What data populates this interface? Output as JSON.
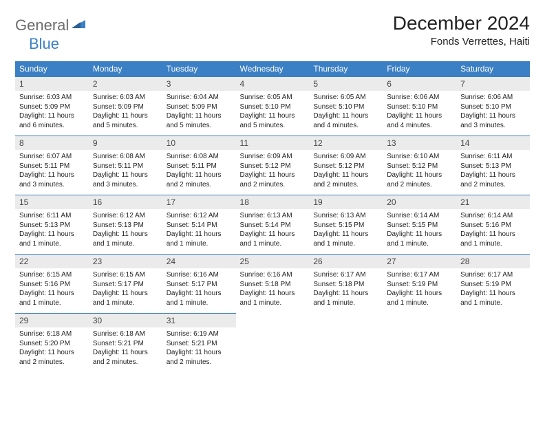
{
  "brand": {
    "word1": "General",
    "word2": "Blue",
    "text_color": "#6b6b6b",
    "accent_color": "#3b7fc4"
  },
  "title": "December 2024",
  "location": "Fonds Verrettes, Haiti",
  "style": {
    "header_bg": "#3b7fc4",
    "header_text": "#ffffff",
    "daynum_bg": "#ebebeb",
    "daynum_border": "#3b7fc4",
    "body_bg": "#ffffff",
    "text_color": "#222222",
    "font_family": "Arial",
    "title_fontsize": 28,
    "location_fontsize": 15,
    "header_fontsize": 12,
    "body_fontsize": 10
  },
  "weekdays": [
    "Sunday",
    "Monday",
    "Tuesday",
    "Wednesday",
    "Thursday",
    "Friday",
    "Saturday"
  ],
  "days": [
    {
      "n": 1,
      "sunrise": "6:03 AM",
      "sunset": "5:09 PM",
      "daylight": "11 hours and 6 minutes."
    },
    {
      "n": 2,
      "sunrise": "6:03 AM",
      "sunset": "5:09 PM",
      "daylight": "11 hours and 5 minutes."
    },
    {
      "n": 3,
      "sunrise": "6:04 AM",
      "sunset": "5:09 PM",
      "daylight": "11 hours and 5 minutes."
    },
    {
      "n": 4,
      "sunrise": "6:05 AM",
      "sunset": "5:10 PM",
      "daylight": "11 hours and 5 minutes."
    },
    {
      "n": 5,
      "sunrise": "6:05 AM",
      "sunset": "5:10 PM",
      "daylight": "11 hours and 4 minutes."
    },
    {
      "n": 6,
      "sunrise": "6:06 AM",
      "sunset": "5:10 PM",
      "daylight": "11 hours and 4 minutes."
    },
    {
      "n": 7,
      "sunrise": "6:06 AM",
      "sunset": "5:10 PM",
      "daylight": "11 hours and 3 minutes."
    },
    {
      "n": 8,
      "sunrise": "6:07 AM",
      "sunset": "5:11 PM",
      "daylight": "11 hours and 3 minutes."
    },
    {
      "n": 9,
      "sunrise": "6:08 AM",
      "sunset": "5:11 PM",
      "daylight": "11 hours and 3 minutes."
    },
    {
      "n": 10,
      "sunrise": "6:08 AM",
      "sunset": "5:11 PM",
      "daylight": "11 hours and 2 minutes."
    },
    {
      "n": 11,
      "sunrise": "6:09 AM",
      "sunset": "5:12 PM",
      "daylight": "11 hours and 2 minutes."
    },
    {
      "n": 12,
      "sunrise": "6:09 AM",
      "sunset": "5:12 PM",
      "daylight": "11 hours and 2 minutes."
    },
    {
      "n": 13,
      "sunrise": "6:10 AM",
      "sunset": "5:12 PM",
      "daylight": "11 hours and 2 minutes."
    },
    {
      "n": 14,
      "sunrise": "6:11 AM",
      "sunset": "5:13 PM",
      "daylight": "11 hours and 2 minutes."
    },
    {
      "n": 15,
      "sunrise": "6:11 AM",
      "sunset": "5:13 PM",
      "daylight": "11 hours and 1 minute."
    },
    {
      "n": 16,
      "sunrise": "6:12 AM",
      "sunset": "5:13 PM",
      "daylight": "11 hours and 1 minute."
    },
    {
      "n": 17,
      "sunrise": "6:12 AM",
      "sunset": "5:14 PM",
      "daylight": "11 hours and 1 minute."
    },
    {
      "n": 18,
      "sunrise": "6:13 AM",
      "sunset": "5:14 PM",
      "daylight": "11 hours and 1 minute."
    },
    {
      "n": 19,
      "sunrise": "6:13 AM",
      "sunset": "5:15 PM",
      "daylight": "11 hours and 1 minute."
    },
    {
      "n": 20,
      "sunrise": "6:14 AM",
      "sunset": "5:15 PM",
      "daylight": "11 hours and 1 minute."
    },
    {
      "n": 21,
      "sunrise": "6:14 AM",
      "sunset": "5:16 PM",
      "daylight": "11 hours and 1 minute."
    },
    {
      "n": 22,
      "sunrise": "6:15 AM",
      "sunset": "5:16 PM",
      "daylight": "11 hours and 1 minute."
    },
    {
      "n": 23,
      "sunrise": "6:15 AM",
      "sunset": "5:17 PM",
      "daylight": "11 hours and 1 minute."
    },
    {
      "n": 24,
      "sunrise": "6:16 AM",
      "sunset": "5:17 PM",
      "daylight": "11 hours and 1 minute."
    },
    {
      "n": 25,
      "sunrise": "6:16 AM",
      "sunset": "5:18 PM",
      "daylight": "11 hours and 1 minute."
    },
    {
      "n": 26,
      "sunrise": "6:17 AM",
      "sunset": "5:18 PM",
      "daylight": "11 hours and 1 minute."
    },
    {
      "n": 27,
      "sunrise": "6:17 AM",
      "sunset": "5:19 PM",
      "daylight": "11 hours and 1 minute."
    },
    {
      "n": 28,
      "sunrise": "6:17 AM",
      "sunset": "5:19 PM",
      "daylight": "11 hours and 1 minute."
    },
    {
      "n": 29,
      "sunrise": "6:18 AM",
      "sunset": "5:20 PM",
      "daylight": "11 hours and 2 minutes."
    },
    {
      "n": 30,
      "sunrise": "6:18 AM",
      "sunset": "5:21 PM",
      "daylight": "11 hours and 2 minutes."
    },
    {
      "n": 31,
      "sunrise": "6:19 AM",
      "sunset": "5:21 PM",
      "daylight": "11 hours and 2 minutes."
    }
  ],
  "labels": {
    "sunrise": "Sunrise:",
    "sunset": "Sunset:",
    "daylight": "Daylight:"
  },
  "layout": {
    "start_weekday_index": 0,
    "columns": 7,
    "rows": 5
  }
}
